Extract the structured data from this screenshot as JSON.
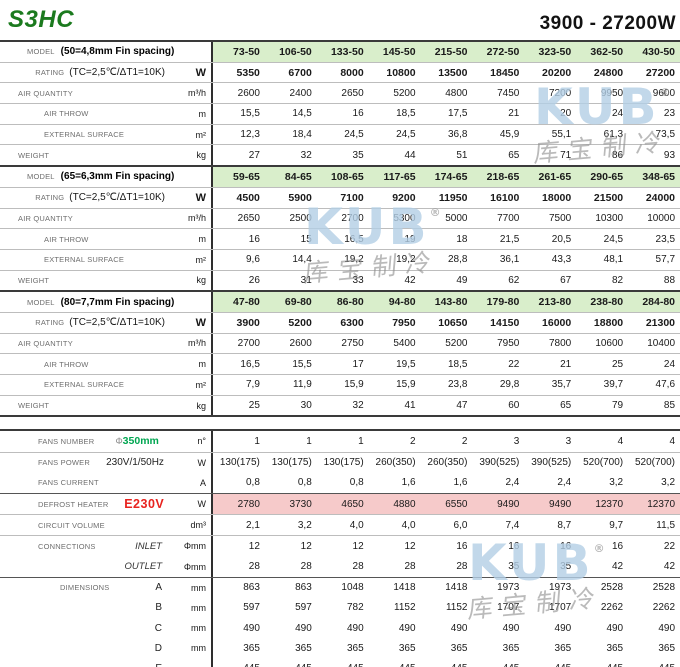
{
  "header": {
    "title": "S3HC",
    "range": "3900 - 27200W"
  },
  "row_labels": {
    "model": "MODEL",
    "rating": "RATING",
    "rating_spec": "(TC=2,5℃/ΔT1=10K)",
    "rating_unit": "W",
    "air_quantity": "AIR QUANTITY",
    "air_quantity_unit": "m³/h",
    "air_throw": "AIR THROW",
    "air_throw_unit": "m",
    "external_surface": "EXTERNAL SURFACE",
    "external_surface_unit": "m²",
    "weight": "WEIGHT",
    "weight_unit": "kg"
  },
  "sections": [
    {
      "spec": "(50=4,8mm Fin spacing)",
      "models": [
        "73-50",
        "106-50",
        "133-50",
        "145-50",
        "215-50",
        "272-50",
        "323-50",
        "362-50",
        "430-50"
      ],
      "rating": [
        "5350",
        "6700",
        "8000",
        "10800",
        "13500",
        "18450",
        "20200",
        "24800",
        "27200"
      ],
      "air_quantity": [
        "2600",
        "2400",
        "2650",
        "5200",
        "4800",
        "7450",
        "7200",
        "9950",
        "9600"
      ],
      "air_throw": [
        "15,5",
        "14,5",
        "16",
        "18,5",
        "17,5",
        "21",
        "20",
        "24",
        "23"
      ],
      "external_surface": [
        "12,3",
        "18,4",
        "24,5",
        "24,5",
        "36,8",
        "45,9",
        "55,1",
        "61,3",
        "73,5"
      ],
      "weight": [
        "27",
        "32",
        "35",
        "44",
        "51",
        "65",
        "71",
        "86",
        "93"
      ]
    },
    {
      "spec": "(65=6,3mm Fin spacing)",
      "models": [
        "59-65",
        "84-65",
        "108-65",
        "117-65",
        "174-65",
        "218-65",
        "261-65",
        "290-65",
        "348-65"
      ],
      "rating": [
        "4500",
        "5900",
        "7100",
        "9200",
        "11950",
        "16100",
        "18000",
        "21500",
        "24000"
      ],
      "air_quantity": [
        "2650",
        "2500",
        "2700",
        "5300",
        "5000",
        "7700",
        "7500",
        "10300",
        "10000"
      ],
      "air_throw": [
        "16",
        "15",
        "16,5",
        "19",
        "18",
        "21,5",
        "20,5",
        "24,5",
        "23,5"
      ],
      "external_surface": [
        "9,6",
        "14,4",
        "19,2",
        "19,2",
        "28,8",
        "36,1",
        "43,3",
        "48,1",
        "57,7"
      ],
      "weight": [
        "26",
        "31",
        "33",
        "42",
        "49",
        "62",
        "67",
        "82",
        "88"
      ]
    },
    {
      "spec": "(80=7,7mm Fin spacing)",
      "models": [
        "47-80",
        "69-80",
        "86-80",
        "94-80",
        "143-80",
        "179-80",
        "213-80",
        "238-80",
        "284-80"
      ],
      "rating": [
        "3900",
        "5200",
        "6300",
        "7950",
        "10650",
        "14150",
        "16000",
        "18800",
        "21300"
      ],
      "air_quantity": [
        "2700",
        "2600",
        "2750",
        "5400",
        "5200",
        "7950",
        "7800",
        "10600",
        "10400"
      ],
      "air_throw": [
        "16,5",
        "15,5",
        "17",
        "19,5",
        "18,5",
        "22",
        "21",
        "25",
        "24"
      ],
      "external_surface": [
        "7,9",
        "11,9",
        "15,9",
        "15,9",
        "23,8",
        "29,8",
        "35,7",
        "39,7",
        "47,6"
      ],
      "weight": [
        "25",
        "30",
        "32",
        "41",
        "47",
        "60",
        "65",
        "79",
        "85"
      ]
    }
  ],
  "bottom": {
    "rows": [
      {
        "label": "FANS NUMBER",
        "mid_prefix": "Φ",
        "mid": "350mm",
        "mid_style": "green",
        "unit": "n°",
        "values": [
          "1",
          "1",
          "1",
          "2",
          "2",
          "3",
          "3",
          "4",
          "4"
        ]
      },
      {
        "label": "FANS POWER",
        "mid": "230V/1/50Hz",
        "mid_style": "plain",
        "unit": "W",
        "values": [
          "130(175)",
          "130(175)",
          "130(175)",
          "260(350)",
          "260(350)",
          "390(525)",
          "390(525)",
          "520(700)",
          "520(700)"
        ]
      },
      {
        "label": "FANS CURRENT",
        "mid": "",
        "mid_style": "plain",
        "unit": "A",
        "values": [
          "0,8",
          "0,8",
          "0,8",
          "1,6",
          "1,6",
          "2,4",
          "2,4",
          "3,2",
          "3,2"
        ]
      },
      {
        "label": "DEFROST HEATER",
        "mid": "E230V",
        "mid_style": "red",
        "unit": "W",
        "highlight": true,
        "values": [
          "2780",
          "3730",
          "4650",
          "4880",
          "6550",
          "9490",
          "9490",
          "12370",
          "12370"
        ]
      },
      {
        "label": "CIRCUIT VOLUME",
        "mid": "",
        "mid_style": "plain",
        "unit": "dm³",
        "values": [
          "2,1",
          "3,2",
          "4,0",
          "4,0",
          "6,0",
          "7,4",
          "8,7",
          "9,7",
          "11,5"
        ]
      },
      {
        "label": "CONNECTIONS",
        "mid": "INLET",
        "mid_style": "italic",
        "unit": "Φmm",
        "values": [
          "12",
          "12",
          "12",
          "12",
          "16",
          "16",
          "16",
          "16",
          "22"
        ]
      },
      {
        "label": "",
        "mid": "OUTLET",
        "mid_style": "italic",
        "unit": "Φmm",
        "values": [
          "28",
          "28",
          "28",
          "28",
          "28",
          "35",
          "35",
          "42",
          "42"
        ]
      },
      {
        "label": "DIMENSIONS",
        "mid": "A",
        "mid_style": "letter",
        "unit": "mm",
        "values": [
          "863",
          "863",
          "1048",
          "1418",
          "1418",
          "1973",
          "1973",
          "2528",
          "2528"
        ]
      },
      {
        "label": "",
        "mid": "B",
        "mid_style": "letter",
        "unit": "mm",
        "values": [
          "597",
          "597",
          "782",
          "1152",
          "1152",
          "1707",
          "1707",
          "2262",
          "2262"
        ]
      },
      {
        "label": "",
        "mid": "C",
        "mid_style": "letter",
        "unit": "mm",
        "values": [
          "490",
          "490",
          "490",
          "490",
          "490",
          "490",
          "490",
          "490",
          "490"
        ]
      },
      {
        "label": "",
        "mid": "D",
        "mid_style": "letter",
        "unit": "mm",
        "values": [
          "365",
          "365",
          "365",
          "365",
          "365",
          "365",
          "365",
          "365",
          "365"
        ]
      },
      {
        "label": "",
        "mid": "E",
        "mid_style": "letter",
        "unit": "mm",
        "values": [
          "445",
          "445",
          "445",
          "445",
          "445",
          "445",
          "445",
          "445",
          "445"
        ]
      }
    ]
  },
  "watermark": {
    "brand": "KUB",
    "reg": "®",
    "chinese": "库宝制冷"
  }
}
